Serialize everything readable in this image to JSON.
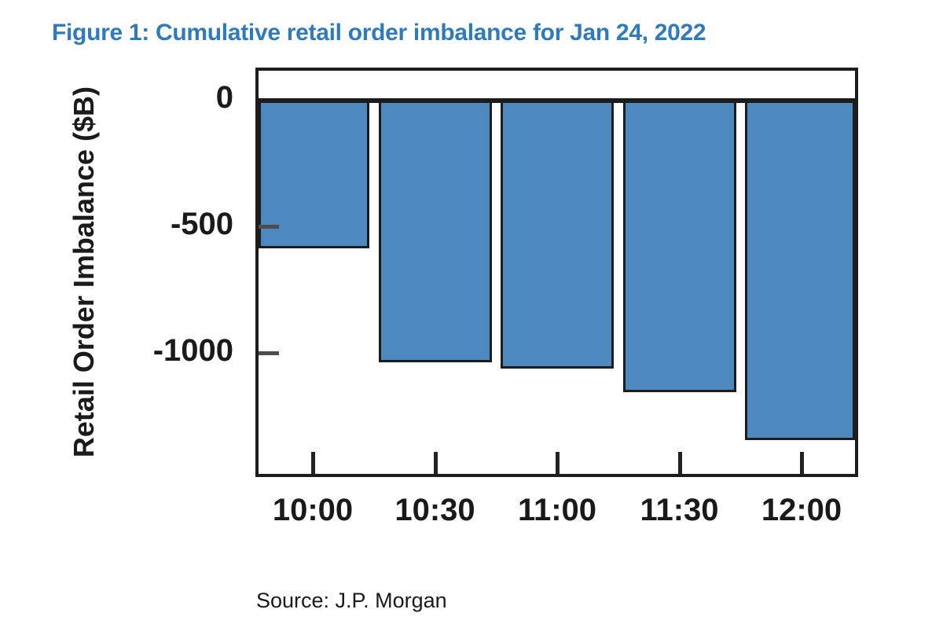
{
  "figure": {
    "title": "Figure 1: Cumulative retail order imbalance for Jan 24, 2022",
    "source": "Source: J.P. Morgan",
    "title_color": "#2F7ABD"
  },
  "chart_data": {
    "type": "bar",
    "title": "Figure 1: Cumulative retail order imbalance for Jan 24, 2022",
    "categories": [
      "10:00",
      "10:30",
      "11:00",
      "11:30",
      "12:00"
    ],
    "values": [
      -585,
      -1035,
      -1060,
      -1155,
      -1345
    ],
    "xlabel": "",
    "ylabel": "Retail Order Imbalance ($B)",
    "ylim": [
      -1480,
      120
    ],
    "y_ticks": [
      0,
      -500,
      -1000
    ],
    "y_tick_labels": [
      "0",
      "-500",
      "-1000"
    ],
    "bar_color": "#4D89BE",
    "bar_border_color": "#1c1c1c",
    "grid": false,
    "legend": false,
    "annotation": "Source: J.P. Morgan"
  }
}
